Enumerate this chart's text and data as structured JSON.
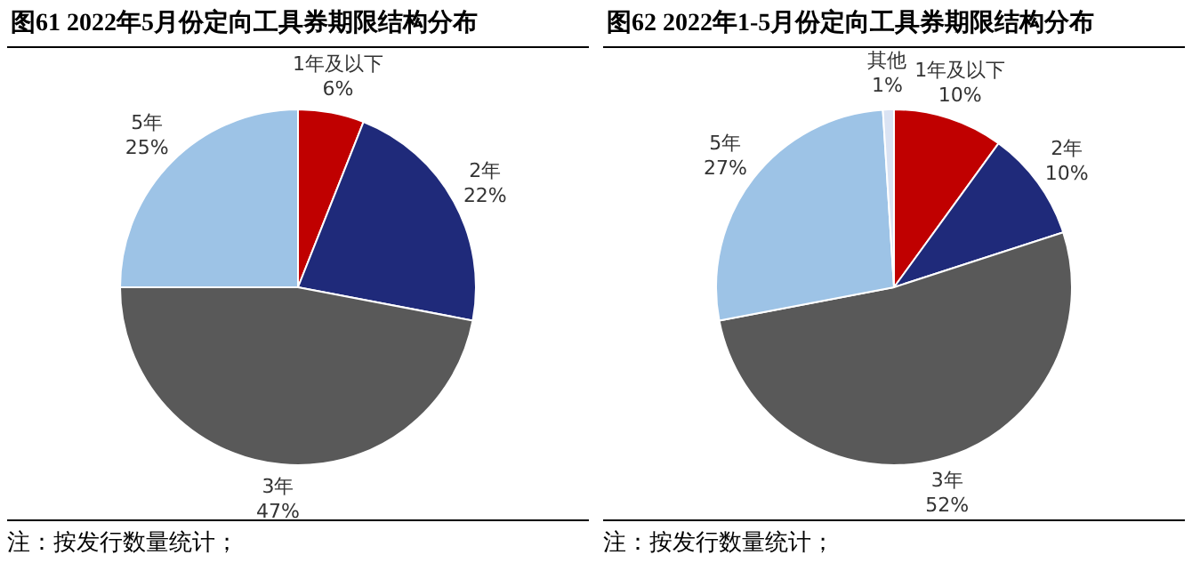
{
  "chart_data": [
    {
      "type": "pie",
      "title": "图61   2022年5月份定向工具券期限结构分布",
      "categories": [
        "1年及以下",
        "2年",
        "3年",
        "5年"
      ],
      "values": [
        6,
        22,
        47,
        25
      ],
      "value_labels": [
        "6%",
        "22%",
        "47%",
        "25%"
      ],
      "colors": [
        "#c00000",
        "#1f2a7a",
        "#595959",
        "#9dc3e6"
      ],
      "legend": false,
      "annotations": [
        "注：按发行数量统计；"
      ]
    },
    {
      "type": "pie",
      "title": "图62   2022年1-5月份定向工具券期限结构分布",
      "categories": [
        "1年及以下",
        "2年",
        "3年",
        "5年",
        "其他"
      ],
      "values": [
        10,
        10,
        52,
        27,
        1
      ],
      "value_labels": [
        "10%",
        "10%",
        "52%",
        "27%",
        "1%"
      ],
      "colors": [
        "#c00000",
        "#1f2a7a",
        "#595959",
        "#9dc3e6",
        "#dae3f3"
      ],
      "legend": false,
      "annotations": [
        "注：按发行数量统计；"
      ]
    }
  ]
}
